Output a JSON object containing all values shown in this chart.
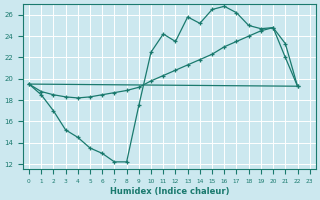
{
  "xlabel": "Humidex (Indice chaleur)",
  "bg_color": "#cce8ef",
  "grid_color": "#ffffff",
  "line_color": "#1a7a6e",
  "xlim": [
    -0.5,
    23.5
  ],
  "ylim": [
    11.5,
    27.0
  ],
  "xticks": [
    0,
    1,
    2,
    3,
    4,
    5,
    6,
    7,
    8,
    9,
    10,
    11,
    12,
    13,
    14,
    15,
    16,
    17,
    18,
    19,
    20,
    21,
    22,
    23
  ],
  "yticks": [
    12,
    14,
    16,
    18,
    20,
    22,
    24,
    26
  ],
  "line1_x": [
    0,
    1,
    2,
    3,
    4,
    5,
    6,
    7,
    8,
    9,
    10,
    11,
    12,
    13,
    14,
    15,
    16,
    17,
    18,
    19,
    20,
    21,
    22
  ],
  "line1_y": [
    19.5,
    18.5,
    17.0,
    15.2,
    14.5,
    13.5,
    13.0,
    12.2,
    12.2,
    17.5,
    22.5,
    24.2,
    23.5,
    25.8,
    25.2,
    26.5,
    26.8,
    26.2,
    25.0,
    24.7,
    24.8,
    23.3,
    19.3
  ],
  "line2_x": [
    0,
    1,
    2,
    3,
    4,
    5,
    6,
    7,
    8,
    9,
    10,
    11,
    12,
    13,
    14,
    15,
    16,
    17,
    18,
    19,
    20,
    21,
    22
  ],
  "line2_y": [
    19.5,
    18.8,
    18.5,
    18.3,
    18.2,
    18.3,
    18.5,
    18.7,
    18.9,
    19.2,
    19.8,
    20.3,
    20.8,
    21.3,
    21.8,
    22.3,
    23.0,
    23.5,
    24.0,
    24.5,
    24.8,
    22.0,
    19.3
  ],
  "line3_x": [
    0,
    22
  ],
  "line3_y": [
    19.5,
    19.3
  ]
}
